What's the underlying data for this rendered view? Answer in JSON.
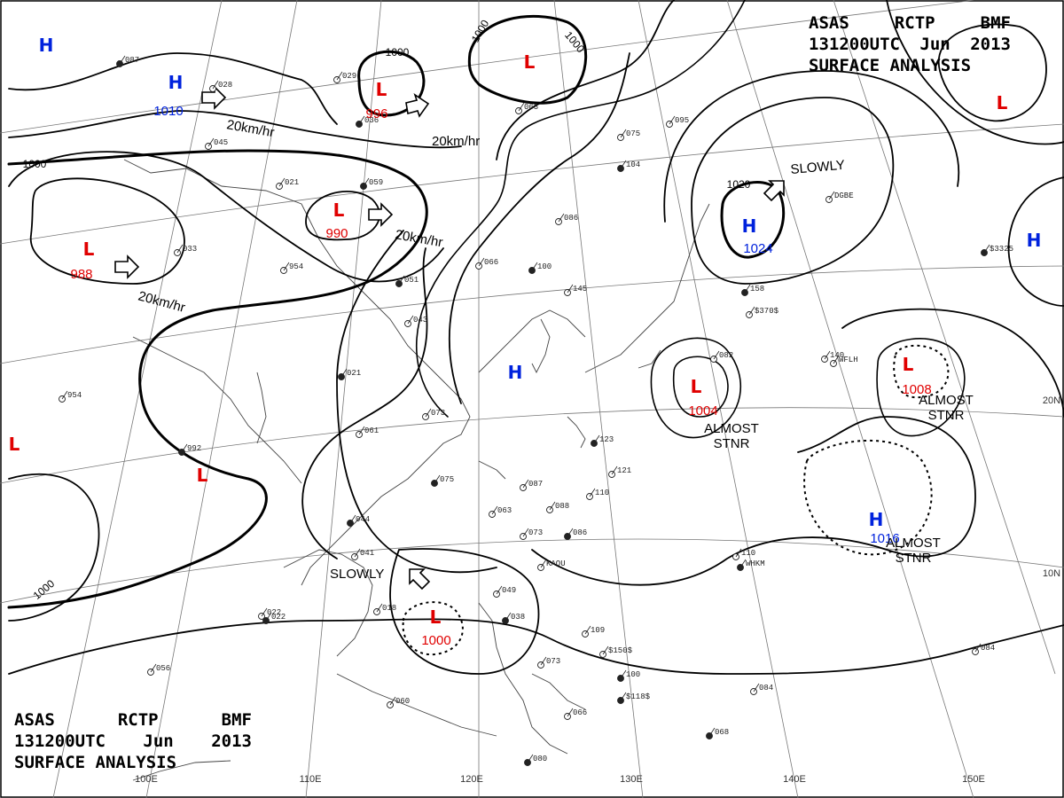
{
  "header": {
    "line1": [
      "ASAS",
      "RCTP",
      "BMF"
    ],
    "line2": [
      "131200UTC",
      "Jun",
      "2013"
    ],
    "line3": "SURFACE ANALYSIS"
  },
  "pressure_systems": [
    {
      "type": "H",
      "value": ""
    },
    {
      "type": "H",
      "value": "1010"
    },
    {
      "type": "L",
      "value": "996"
    },
    {
      "type": "L",
      "value": ""
    },
    {
      "type": "L",
      "value": ""
    },
    {
      "type": "L",
      "value": "990"
    },
    {
      "type": "L",
      "value": "988"
    },
    {
      "type": "H",
      "value": "1024"
    },
    {
      "type": "H",
      "value": ""
    },
    {
      "type": "H",
      "value": ""
    },
    {
      "type": "L",
      "value": "1004"
    },
    {
      "type": "L",
      "value": "1008"
    },
    {
      "type": "L",
      "value": ""
    },
    {
      "type": "L",
      "value": ""
    },
    {
      "type": "H",
      "value": "1016"
    },
    {
      "type": "L",
      "value": "1000"
    }
  ],
  "isobar_labels": [
    "1000",
    "1000",
    "1000",
    "1000",
    "1020",
    "1000"
  ],
  "motion_labels": [
    "20km/hr",
    "20km/hr",
    "20km/hr",
    "20km/hr",
    "SLOWLY",
    "SLOWLY"
  ],
  "stationary_notes": [
    [
      "ALMOST",
      "STNR"
    ],
    [
      "ALMOST",
      "STNR"
    ],
    [
      "ALMOST",
      "STNR"
    ]
  ],
  "longitude_labels": [
    "100E",
    "110E",
    "120E",
    "130E",
    "140E",
    "150E"
  ],
  "latitude_labels": [
    "20N",
    "10N"
  ],
  "station_samples": [
    "087",
    "028",
    "045",
    "036",
    "063",
    "075",
    "104",
    "095",
    "021",
    "059",
    "954",
    "033",
    "051",
    "043",
    "066",
    "100",
    "145",
    "086",
    "158",
    "082",
    "140",
    "021",
    "073",
    "061",
    "075",
    "087",
    "088",
    "123",
    "121",
    "110",
    "044",
    "063",
    "073",
    "086",
    "041",
    "018",
    "022",
    "022",
    "049",
    "038",
    "109",
    "073",
    "100",
    "084",
    "084",
    "068",
    "060",
    "066",
    "080",
    "056",
    "110",
    "992",
    "954",
    "029",
    "$3325",
    "$370$",
    "$150$",
    "$118$",
    "DGBE",
    "WFLH",
    "WHKM",
    "KAOU"
  ]
}
